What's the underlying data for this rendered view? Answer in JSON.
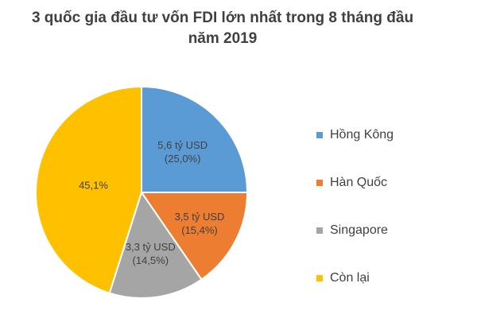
{
  "chart_data": {
    "type": "pie",
    "title_lines": [
      "3 quốc gia đầu tư vốn FDI lớn nhất trong 8 tháng đầu",
      "năm 2019"
    ],
    "slices": [
      {
        "name": "Hồng Kông",
        "percent": 25.0,
        "color": "#5b9bd5",
        "label_lines": [
          "5,6 tỷ USD",
          "(25,0%)"
        ]
      },
      {
        "name": "Hàn Quốc",
        "percent": 15.4,
        "color": "#ed7d31",
        "label_lines": [
          "3,5 tỷ USD",
          "(15,4%)"
        ]
      },
      {
        "name": "Singapore",
        "percent": 14.5,
        "color": "#a5a5a5",
        "label_lines": [
          "3,3 tỷ USD",
          "(14,5%)"
        ]
      },
      {
        "name": "Còn lại",
        "percent": 45.1,
        "color": "#ffc000",
        "label_lines": [
          "45,1%"
        ]
      }
    ],
    "legend_position": "right"
  }
}
